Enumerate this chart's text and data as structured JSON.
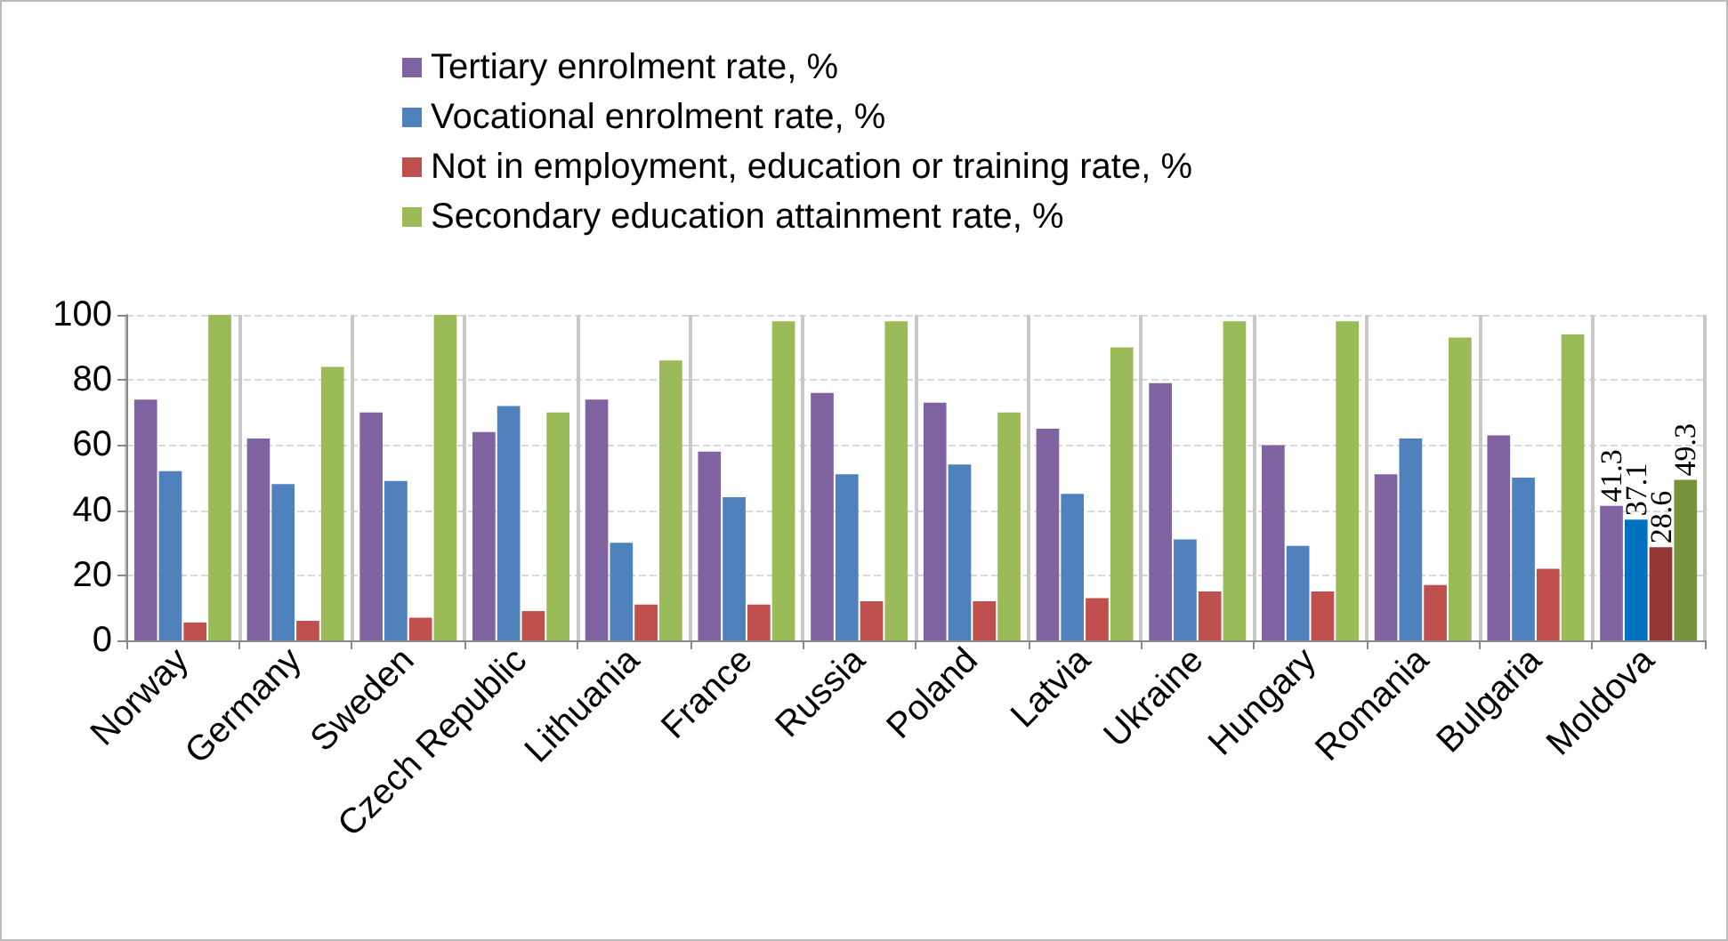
{
  "chart_data": {
    "type": "bar",
    "categories": [
      "Norway",
      "Germany",
      "Sweden",
      "Czech Republic",
      "Lithuania",
      "France",
      "Russia",
      "Poland",
      "Latvia",
      "Ukraine",
      "Hungary",
      "Romania",
      "Bulgaria",
      "Moldova"
    ],
    "series": [
      {
        "name": "Tertiary enrolment rate, %",
        "color": "#8064a2",
        "colors": [
          "#8064a2",
          "#8064a2",
          "#8064a2",
          "#8064a2",
          "#8064a2",
          "#8064a2",
          "#8064a2",
          "#8064a2",
          "#8064a2",
          "#8064a2",
          "#8064a2",
          "#8064a2",
          "#8064a2",
          "#8064a2"
        ],
        "values": [
          74,
          62,
          70,
          64,
          74,
          58,
          76,
          73,
          65,
          79,
          60,
          51,
          63,
          41.3
        ],
        "value_labels": [
          null,
          null,
          null,
          null,
          null,
          null,
          null,
          null,
          null,
          null,
          null,
          null,
          null,
          "41.3"
        ]
      },
      {
        "name": "Vocational enrolment rate, %",
        "color": "#4f81bd",
        "colors": [
          "#4f81bd",
          "#4f81bd",
          "#4f81bd",
          "#4f81bd",
          "#4f81bd",
          "#4f81bd",
          "#4f81bd",
          "#4f81bd",
          "#4f81bd",
          "#4f81bd",
          "#4f81bd",
          "#4f81bd",
          "#4f81bd",
          "#0070c0"
        ],
        "values": [
          52,
          48,
          49,
          72,
          30,
          44,
          51,
          54,
          45,
          31,
          29,
          62,
          50,
          37.1
        ],
        "value_labels": [
          null,
          null,
          null,
          null,
          null,
          null,
          null,
          null,
          null,
          null,
          null,
          null,
          null,
          "37.1"
        ]
      },
      {
        "name": "Not in employment, education or training rate, %",
        "color": "#c0504d",
        "colors": [
          "#c0504d",
          "#c0504d",
          "#c0504d",
          "#c0504d",
          "#c0504d",
          "#c0504d",
          "#c0504d",
          "#c0504d",
          "#c0504d",
          "#c0504d",
          "#c0504d",
          "#c0504d",
          "#c0504d",
          "#953735"
        ],
        "values": [
          5.5,
          6,
          7,
          9,
          11,
          11,
          12,
          12,
          13,
          15,
          15,
          17,
          22,
          28.6
        ],
        "value_labels": [
          null,
          null,
          null,
          null,
          null,
          null,
          null,
          null,
          null,
          null,
          null,
          null,
          null,
          "28.6"
        ]
      },
      {
        "name": "Secondary education attainment rate, %",
        "color": "#9bbb59",
        "colors": [
          "#9bbb59",
          "#9bbb59",
          "#9bbb59",
          "#9bbb59",
          "#9bbb59",
          "#9bbb59",
          "#9bbb59",
          "#9bbb59",
          "#9bbb59",
          "#9bbb59",
          "#9bbb59",
          "#9bbb59",
          "#9bbb59",
          "#77933c"
        ],
        "values": [
          100,
          84,
          100,
          70,
          86,
          98,
          98,
          70,
          90,
          98,
          98,
          93,
          94,
          49.3
        ],
        "value_labels": [
          null,
          null,
          null,
          null,
          null,
          null,
          null,
          null,
          null,
          null,
          null,
          null,
          null,
          "49.3"
        ]
      }
    ],
    "ylim": [
      0,
      100
    ],
    "yticks": [
      0,
      20,
      40,
      60,
      80,
      100
    ],
    "grid": true,
    "legend": "top"
  }
}
